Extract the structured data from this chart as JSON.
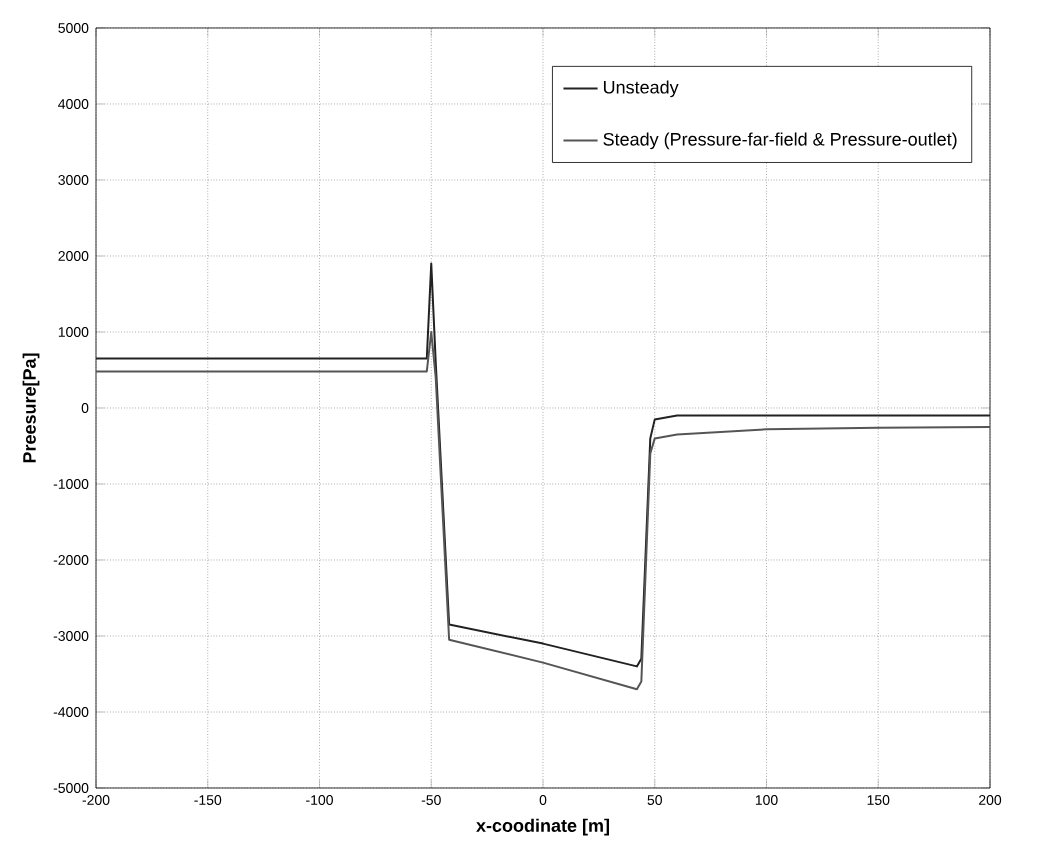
{
  "chart_data": {
    "type": "line",
    "xlabel": "x-coodinate [m]",
    "ylabel": "Preesure[Pa]",
    "xlim": [
      -200,
      200
    ],
    "xticks": [
      -200,
      -150,
      -100,
      -50,
      0,
      50,
      100,
      150,
      200
    ],
    "ylim": [
      -5000,
      5000
    ],
    "yticks": [
      -5000,
      -4000,
      -3000,
      -2000,
      -1000,
      0,
      1000,
      2000,
      3000,
      4000,
      5000
    ],
    "grid": true,
    "legend": "top right",
    "marker": "none",
    "line_style": "solid",
    "series": [
      {
        "name": "Unsteady",
        "color": "#222222",
        "x": [
          -200,
          -100,
          -52,
          -50,
          -48,
          -42,
          0,
          42,
          44,
          48,
          50,
          60,
          100,
          150,
          200
        ],
        "values": [
          650,
          650,
          650,
          1900,
          600,
          -2850,
          -3100,
          -3400,
          -3300,
          -400,
          -150,
          -100,
          -100,
          -100,
          -100
        ]
      },
      {
        "name": "Steady (Pressure-far-field  & Pressure-outlet)",
        "color": "#555555",
        "x": [
          -200,
          -100,
          -52,
          -50,
          -48,
          -42,
          0,
          42,
          44,
          48,
          50,
          60,
          100,
          150,
          200
        ],
        "values": [
          480,
          480,
          480,
          1000,
          400,
          -3050,
          -3350,
          -3700,
          -3600,
          -600,
          -400,
          -350,
          -280,
          -260,
          -250
        ]
      }
    ]
  }
}
